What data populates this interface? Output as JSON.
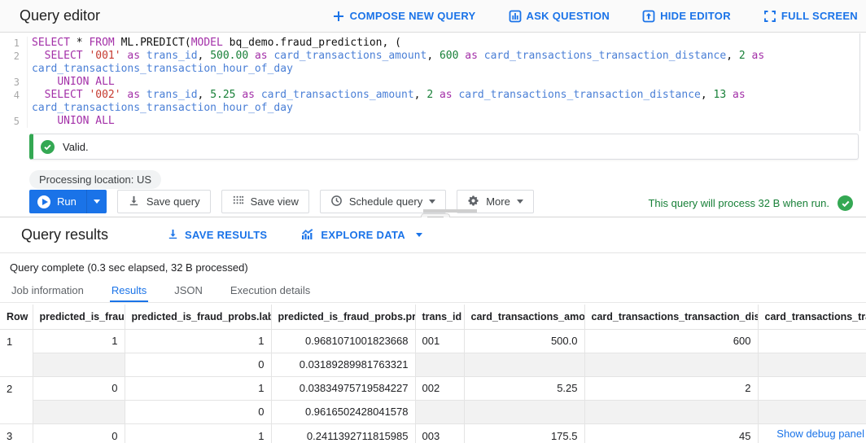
{
  "header": {
    "title": "Query editor",
    "actions": [
      {
        "label": "COMPOSE NEW QUERY",
        "icon": "plus-icon"
      },
      {
        "label": "ASK QUESTION",
        "icon": "ask-question-icon"
      },
      {
        "label": "HIDE EDITOR",
        "icon": "hide-editor-icon"
      },
      {
        "label": "FULL SCREEN",
        "icon": "full-screen-icon"
      }
    ]
  },
  "editor": {
    "lines": [
      {
        "num": "1",
        "segments": [
          [
            "k",
            "SELECT"
          ],
          [
            "p",
            " * "
          ],
          [
            "k",
            "FROM"
          ],
          [
            "p",
            " ML.PREDICT("
          ],
          [
            "k",
            "MODEL"
          ],
          [
            "p",
            " bq_demo.fraud_prediction, ("
          ]
        ]
      },
      {
        "num": "2",
        "segments": [
          [
            "p",
            "  "
          ],
          [
            "k",
            "SELECT"
          ],
          [
            "p",
            " "
          ],
          [
            "s",
            "'001'"
          ],
          [
            "p",
            " "
          ],
          [
            "k",
            "as"
          ],
          [
            "p",
            " "
          ],
          [
            "i",
            "trans_id"
          ],
          [
            "p",
            ", "
          ],
          [
            "n",
            "500.00"
          ],
          [
            "p",
            " "
          ],
          [
            "k",
            "as"
          ],
          [
            "p",
            " "
          ],
          [
            "i",
            "card_transactions_amount"
          ],
          [
            "p",
            ", "
          ],
          [
            "n",
            "600"
          ],
          [
            "p",
            " "
          ],
          [
            "k",
            "as"
          ],
          [
            "p",
            " "
          ],
          [
            "i",
            "card_transactions_transaction_distance"
          ],
          [
            "p",
            ", "
          ],
          [
            "n",
            "2"
          ],
          [
            "p",
            " "
          ],
          [
            "k",
            "as"
          ],
          [
            "p",
            " "
          ],
          [
            "i",
            "card_transactions_transaction_hour_of_day"
          ]
        ]
      },
      {
        "num": "3",
        "segments": [
          [
            "p",
            "    "
          ],
          [
            "k",
            "UNION ALL"
          ]
        ]
      },
      {
        "num": "4",
        "segments": [
          [
            "p",
            "  "
          ],
          [
            "k",
            "SELECT"
          ],
          [
            "p",
            " "
          ],
          [
            "s",
            "'002'"
          ],
          [
            "p",
            " "
          ],
          [
            "k",
            "as"
          ],
          [
            "p",
            " "
          ],
          [
            "i",
            "trans_id"
          ],
          [
            "p",
            ", "
          ],
          [
            "n",
            "5.25"
          ],
          [
            "p",
            " "
          ],
          [
            "k",
            "as"
          ],
          [
            "p",
            " "
          ],
          [
            "i",
            "card_transactions_amount"
          ],
          [
            "p",
            ", "
          ],
          [
            "n",
            "2"
          ],
          [
            "p",
            " "
          ],
          [
            "k",
            "as"
          ],
          [
            "p",
            " "
          ],
          [
            "i",
            "card_transactions_transaction_distance"
          ],
          [
            "p",
            ", "
          ],
          [
            "n",
            "13"
          ],
          [
            "p",
            " "
          ],
          [
            "k",
            "as"
          ],
          [
            "p",
            " "
          ],
          [
            "i",
            "card_transactions_transaction_hour_of_day"
          ]
        ]
      },
      {
        "num": "5",
        "segments": [
          [
            "p",
            "    "
          ],
          [
            "k",
            "UNION ALL"
          ]
        ]
      }
    ]
  },
  "validation": {
    "message": "Valid.",
    "icon": "check-circle-icon",
    "color": "#34a853"
  },
  "toolbar": {
    "location_chip": "Processing location: US",
    "run_label": "Run",
    "save_query_label": "Save query",
    "save_view_label": "Save view",
    "schedule_query_label": "Schedule query",
    "more_label": "More",
    "process_note": "This query will process 32 B when run.",
    "process_note_color": "#188038"
  },
  "results": {
    "title": "Query results",
    "save_results_label": "SAVE RESULTS",
    "explore_data_label": "EXPLORE DATA",
    "status": "Query complete (0.3 sec elapsed, 32 B processed)",
    "tabs": [
      {
        "label": "Job information",
        "active": false
      },
      {
        "label": "Results",
        "active": true
      },
      {
        "label": "JSON",
        "active": false
      },
      {
        "label": "Execution details",
        "active": false
      }
    ],
    "debug_link": "Show debug panel"
  },
  "table": {
    "columns": [
      "Row",
      "predicted_is_fraud",
      "predicted_is_fraud_probs.label",
      "predicted_is_fraud_probs.prob",
      "trans_id",
      "card_transactions_amount",
      "card_transactions_transaction_distance",
      "card_transactions_transaction_hour_of_day"
    ],
    "rows": [
      {
        "row": "1",
        "main": {
          "predicted_is_fraud": "1",
          "label": "1",
          "prob": "0.9681071001823668",
          "trans_id": "001",
          "amount": "500.0",
          "distance": "600",
          "hour": ""
        },
        "sub": {
          "label": "0",
          "prob": "0.03189289981763321"
        }
      },
      {
        "row": "2",
        "main": {
          "predicted_is_fraud": "0",
          "label": "1",
          "prob": "0.03834975719584227",
          "trans_id": "002",
          "amount": "5.25",
          "distance": "2",
          "hour": ""
        },
        "sub": {
          "label": "0",
          "prob": "0.9616502428041578"
        }
      },
      {
        "row": "3",
        "main": {
          "predicted_is_fraud": "0",
          "label": "1",
          "prob": "0.2411392711815985",
          "trans_id": "003",
          "amount": "175.5",
          "distance": "45",
          "hour": ""
        },
        "sub": null
      }
    ]
  },
  "accent_colors": {
    "blue": "#1a73e8",
    "green": "#34a853",
    "keyword": "#a330a8",
    "string": "#c5392e",
    "identifier": "#4a7fd6",
    "number": "#188038"
  }
}
